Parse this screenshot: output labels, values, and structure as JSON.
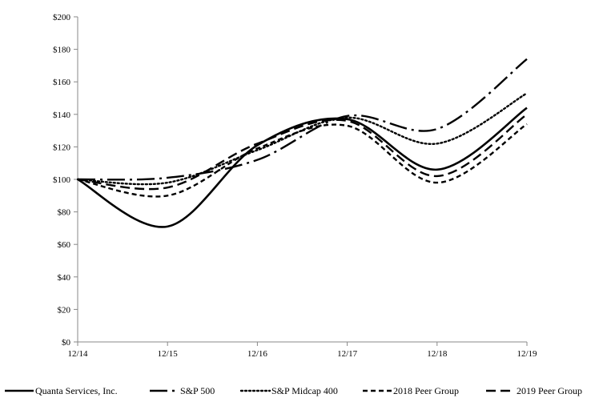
{
  "chart_data": {
    "type": "line",
    "title": "",
    "xlabel": "",
    "ylabel": "",
    "categories": [
      "12/14",
      "12/15",
      "12/16",
      "12/17",
      "12/18",
      "12/19"
    ],
    "ylim": [
      0,
      200
    ],
    "yticks": [
      "$0",
      "$20",
      "$40",
      "$60",
      "$80",
      "$100",
      "$120",
      "$140",
      "$160",
      "$180",
      "$200"
    ],
    "grid": false,
    "legend_position": "bottom",
    "series": [
      {
        "name": "Quanta Services, Inc.",
        "values": [
          100,
          71,
          121,
          137,
          106,
          144
        ],
        "dash": "solid",
        "color": "#000000"
      },
      {
        "name": "S&P 500",
        "values": [
          100,
          101,
          112,
          139,
          131,
          174
        ],
        "dash": "longdashdot",
        "color": "#000000"
      },
      {
        "name": "S&P Midcap 400",
        "values": [
          100,
          98,
          118,
          138,
          122,
          153
        ],
        "dash": "dotted",
        "color": "#000000"
      },
      {
        "name": "2018 Peer Group",
        "values": [
          100,
          90,
          119,
          133,
          98,
          134
        ],
        "dash": "shortdash",
        "color": "#000000"
      },
      {
        "name": "2019 Peer Group",
        "values": [
          100,
          95,
          122,
          136,
          102,
          140
        ],
        "dash": "longdash",
        "color": "#000000"
      }
    ]
  }
}
